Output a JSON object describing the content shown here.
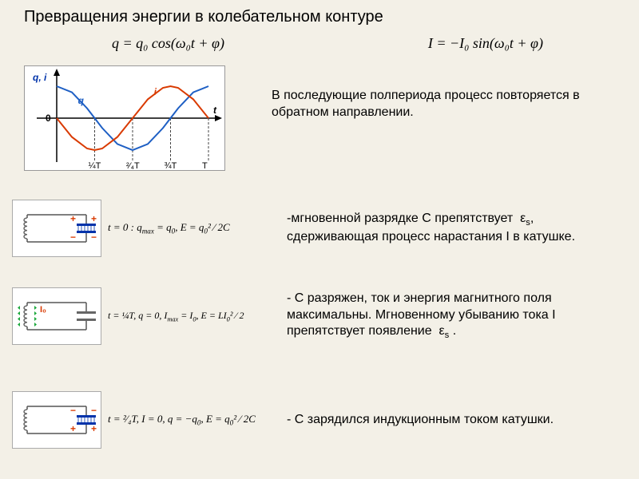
{
  "background_color": "#f3f0e7",
  "text_color": "#000000",
  "title": {
    "text": "Превращения энергии в колебательном контуре",
    "fontsize": 20
  },
  "top_formulas": {
    "q": "q = q₀ cos(ω₀t + φ)",
    "I": "I = −I₀ sin(ω₀t + φ)",
    "fontsize": 18,
    "fontfamily": "Times New Roman"
  },
  "graph": {
    "type": "line",
    "background": "#ffffff",
    "border": "#999999",
    "axes_label_color": "#0033aa",
    "y_axis_label": "q, i",
    "x_axis_label": "t",
    "origin_label": "0",
    "x_ticks": [
      "¼T",
      "²⁄₄T",
      "¾T",
      "T"
    ],
    "series": [
      {
        "name": "q",
        "label": "q",
        "color": "#1e5fc4",
        "width": 2,
        "dash": "solid",
        "data_norm": [
          [
            0.0,
            1.0
          ],
          [
            0.1,
            0.81
          ],
          [
            0.2,
            0.31
          ],
          [
            0.25,
            0.0
          ],
          [
            0.3,
            -0.31
          ],
          [
            0.4,
            -0.81
          ],
          [
            0.5,
            -1.0
          ],
          [
            0.6,
            -0.81
          ],
          [
            0.7,
            -0.31
          ],
          [
            0.75,
            0.0
          ],
          [
            0.8,
            0.31
          ],
          [
            0.9,
            0.81
          ],
          [
            1.0,
            1.0
          ]
        ]
      },
      {
        "name": "i",
        "label": "i",
        "color": "#d93a00",
        "width": 2,
        "dash": "solid",
        "data_norm": [
          [
            0.0,
            0.0
          ],
          [
            0.1,
            -0.59
          ],
          [
            0.2,
            -0.95
          ],
          [
            0.25,
            -1.0
          ],
          [
            0.3,
            -0.95
          ],
          [
            0.4,
            -0.59
          ],
          [
            0.5,
            0.0
          ],
          [
            0.6,
            0.59
          ],
          [
            0.7,
            0.95
          ],
          [
            0.75,
            1.0
          ],
          [
            0.8,
            0.95
          ],
          [
            0.9,
            0.59
          ],
          [
            1.0,
            0.0
          ]
        ]
      }
    ],
    "tick_dash_color": "#444444"
  },
  "graph_caption": "В последующие полпериода процесс повторяется в обратном направлении.",
  "stages": [
    {
      "circuit": {
        "type": "LC",
        "coil_color": "#666666",
        "capacitor_color": "#0033aa",
        "cap_top_sign": "+",
        "cap_bottom_sign": "−",
        "cap_sign_color": "#d93a00",
        "show_current_arrows": false
      },
      "formula_html": "t = 0 : q<sub>max</sub> = q<sub>0</sub>, E = q<sub>0</sub>² ⁄ 2C",
      "desc_html": "мгновенной разрядке С препятствует &nbsp;ε<sub>s</sub>, сдерживающая процесс нарастания I в катушке.",
      "desc_prefix": "-"
    },
    {
      "circuit": {
        "type": "LC",
        "coil_color": "#666666",
        "capacitor_color": "#666666",
        "cap_top_sign": "",
        "cap_bottom_sign": "",
        "show_current_arrows": true,
        "current_arrow_color": "#1aa83a",
        "current_label": "I₀",
        "current_label_color": "#d93a00"
      },
      "formula_html": "t = ¼T, q = 0, I<sub>max</sub> = I<sub>0</sub>, E = LI<sub>0</sub>² ⁄ 2",
      "desc_html": "С разряжен, ток и энергия магнитного поля максимальны. Мгновенному убыванию тока I препятствует появление &nbsp;ε<sub>s</sub>&nbsp;.",
      "desc_prefix": "- "
    },
    {
      "circuit": {
        "type": "LC",
        "coil_color": "#666666",
        "capacitor_color": "#0033aa",
        "cap_top_sign": "−",
        "cap_bottom_sign": "+",
        "cap_sign_color": "#d93a00",
        "show_current_arrows": false
      },
      "formula_html": "t = ²⁄₄T, I = 0, q = −q<sub>0</sub>, E = q<sub>0</sub>² ⁄ 2C",
      "desc_html": "С зарядился индукционным током катушки.",
      "desc_prefix": "- "
    }
  ],
  "body_fontsize": 16
}
